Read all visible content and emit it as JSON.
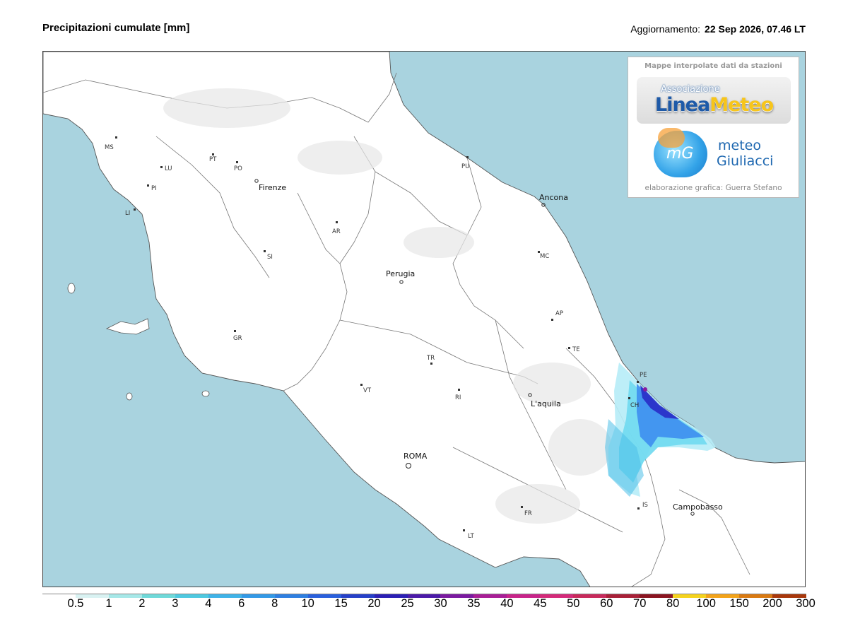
{
  "header": {
    "title": "Precipitazioni cumulate [mm]",
    "update_label": "Aggiornamento:",
    "update_value": "22 Sep 2026, 07.46 LT"
  },
  "logo_box": {
    "caption": "Mappe interpolate dati da stazioni",
    "linea_small": "Associazione",
    "linea_big_1": "Linea",
    "linea_big_2": "Meteo",
    "mg_letters": "mG",
    "mg_word1": "meteo",
    "mg_word2": "Giuliacci",
    "credit": "elaborazione grafica: Guerra Stefano"
  },
  "cities": [
    {
      "name": "Firenze",
      "kind": "city"
    },
    {
      "name": "Perugia",
      "kind": "city"
    },
    {
      "name": "Ancona",
      "kind": "city"
    },
    {
      "name": "L'aquila",
      "kind": "city"
    },
    {
      "name": "ROMA",
      "kind": "capital"
    },
    {
      "name": "Campobasso",
      "kind": "city"
    }
  ],
  "provinces": [
    "MS",
    "LU",
    "PT",
    "PO",
    "PI",
    "LI",
    "AR",
    "SI",
    "GR",
    "PU",
    "MC",
    "AP",
    "TE",
    "PE",
    "CH",
    "TR",
    "VT",
    "RI",
    "IS",
    "FR",
    "LT"
  ],
  "legend": {
    "labels": [
      "0.5",
      "1",
      "2",
      "3",
      "4",
      "6",
      "8",
      "10",
      "15",
      "20",
      "25",
      "30",
      "35",
      "40",
      "45",
      "50",
      "60",
      "70",
      "80",
      "100",
      "150",
      "200",
      "300"
    ],
    "colors": [
      "#ffffff",
      "#d9f2f2",
      "#a6e8e8",
      "#6fd9d9",
      "#4fc9e0",
      "#3fb3e8",
      "#3399e6",
      "#2f7fe0",
      "#2a60dc",
      "#2640c8",
      "#2b1fb4",
      "#4b1aa8",
      "#7b1aa0",
      "#a81e96",
      "#c8248a",
      "#d42a7a",
      "#c82a5c",
      "#a82038",
      "#8a1420",
      "#f5d31e",
      "#f3a31a",
      "#d97a12",
      "#a8380c"
    ]
  },
  "colors": {
    "sea": "#a9d3df",
    "land": "#ffffff",
    "rain_light": "#6fd9f0",
    "rain_mid": "#3f8ff0",
    "rain_heavy": "#2a30c8",
    "rain_peak": "#8a1aa0"
  }
}
